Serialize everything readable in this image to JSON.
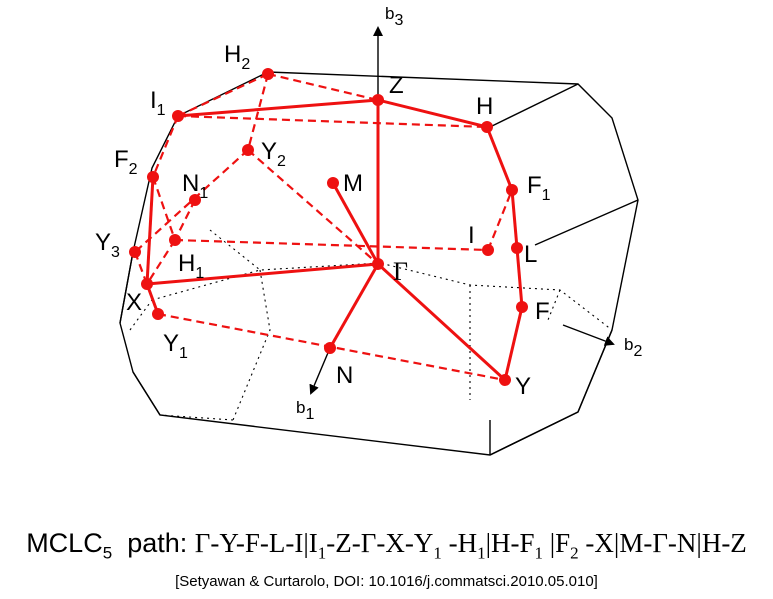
{
  "diagram": {
    "axes": [
      {
        "name": "b",
        "sub": "3"
      },
      {
        "name": "b",
        "sub": "2"
      },
      {
        "name": "b",
        "sub": "1"
      }
    ],
    "points": [
      {
        "id": "gamma",
        "name": "Γ",
        "sub": ""
      },
      {
        "id": "Z",
        "name": "Z",
        "sub": ""
      },
      {
        "id": "H",
        "name": "H",
        "sub": ""
      },
      {
        "id": "H2",
        "name": "H",
        "sub": "2"
      },
      {
        "id": "I1",
        "name": "I",
        "sub": "1"
      },
      {
        "id": "Y2",
        "name": "Y",
        "sub": "2"
      },
      {
        "id": "M",
        "name": "M",
        "sub": ""
      },
      {
        "id": "F2",
        "name": "F",
        "sub": "2"
      },
      {
        "id": "N1",
        "name": "N",
        "sub": "1"
      },
      {
        "id": "F1",
        "name": "F",
        "sub": "1"
      },
      {
        "id": "Y3",
        "name": "Y",
        "sub": "3"
      },
      {
        "id": "H1",
        "name": "H",
        "sub": "1"
      },
      {
        "id": "I",
        "name": "I",
        "sub": ""
      },
      {
        "id": "L",
        "name": "L",
        "sub": ""
      },
      {
        "id": "X",
        "name": "X",
        "sub": ""
      },
      {
        "id": "F",
        "name": "F",
        "sub": ""
      },
      {
        "id": "Y1",
        "name": "Y",
        "sub": "1"
      },
      {
        "id": "N",
        "name": "N",
        "sub": ""
      },
      {
        "id": "Y",
        "name": "Y",
        "sub": ""
      }
    ]
  },
  "caption": {
    "lattice": "MCLC",
    "lattice_sub": "5",
    "path_label": "path:",
    "path_segments": [
      {
        "t": "Γ-Y-F-L-I|I",
        "s": "1"
      },
      {
        "t": "-Z-Γ-X-Y",
        "s": "1"
      },
      {
        "t": " -H",
        "s": "1"
      },
      {
        "t": "|H-F",
        "s": "1"
      },
      {
        "t": " |F",
        "s": "2"
      },
      {
        "t": " -X|M-Γ-N|H-Z",
        "s": ""
      }
    ]
  },
  "citation": "[Setyawan & Curtarolo, DOI: 10.1016/j.commatsci.2010.05.010]",
  "colors": {
    "path": "#ee1111",
    "edge": "#000000"
  }
}
